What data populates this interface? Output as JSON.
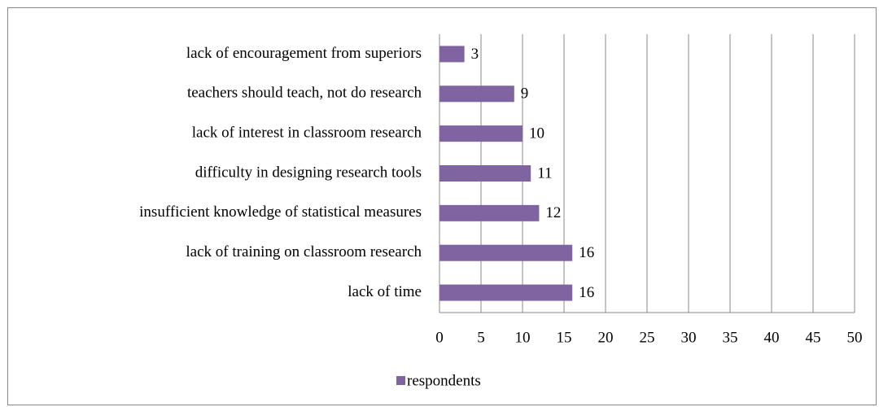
{
  "chart_data": {
    "type": "bar",
    "orientation": "horizontal",
    "categories": [
      "lack of encouragement from superiors",
      "teachers should teach, not do research",
      "lack of interest in classroom research",
      "difficulty in designing research tools",
      "insufficient knowledge of statistical measures",
      "lack of training on classroom research",
      "lack of time"
    ],
    "series": [
      {
        "name": "respondents",
        "color": "#8064a2",
        "values": [
          3,
          9,
          10,
          11,
          12,
          16,
          16
        ]
      }
    ],
    "xlim": [
      0,
      50
    ],
    "xticks": [
      0,
      5,
      10,
      15,
      20,
      25,
      30,
      35,
      40,
      45,
      50
    ],
    "grid": true,
    "legend": "bottom"
  }
}
